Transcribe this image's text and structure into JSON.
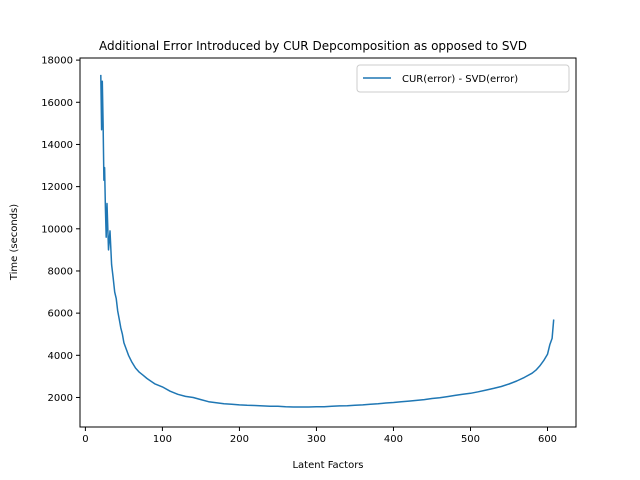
{
  "chart_data": {
    "type": "line",
    "title": "Additional Error Introduced by CUR Depcomposition as opposed to SVD",
    "xlabel": "Latent Factors",
    "ylabel": "Time (seconds)",
    "xlim": [
      -7,
      637
    ],
    "ylim": [
      600,
      18100
    ],
    "xticks": [
      0,
      100,
      200,
      300,
      400,
      500,
      600
    ],
    "yticks": [
      2000,
      4000,
      6000,
      8000,
      10000,
      12000,
      14000,
      16000,
      18000
    ],
    "legend_position": "upper right",
    "grid": false,
    "series": [
      {
        "name": "CUR(error) - SVD(error)",
        "color": "#1f77b4",
        "x": [
          20,
          21,
          22,
          23,
          24,
          25,
          26,
          27,
          28,
          30,
          32,
          34,
          36,
          38,
          40,
          42,
          44,
          46,
          48,
          50,
          53,
          56,
          60,
          65,
          70,
          75,
          80,
          90,
          100,
          110,
          120,
          130,
          140,
          150,
          160,
          170,
          180,
          190,
          200,
          210,
          220,
          230,
          240,
          250,
          260,
          270,
          280,
          290,
          300,
          310,
          320,
          330,
          340,
          350,
          360,
          370,
          380,
          390,
          400,
          410,
          420,
          430,
          440,
          450,
          460,
          470,
          480,
          490,
          500,
          510,
          520,
          530,
          540,
          550,
          560,
          570,
          580,
          585,
          590,
          595,
          600,
          603,
          606,
          608
        ],
        "values": [
          17300,
          14700,
          17000,
          15000,
          12300,
          12900,
          11000,
          9600,
          11200,
          9000,
          9900,
          8300,
          7700,
          7000,
          6700,
          6100,
          5700,
          5300,
          5000,
          4600,
          4300,
          4000,
          3700,
          3400,
          3200,
          3050,
          2900,
          2650,
          2500,
          2300,
          2150,
          2050,
          2000,
          1900,
          1800,
          1750,
          1700,
          1680,
          1650,
          1630,
          1620,
          1600,
          1580,
          1580,
          1560,
          1550,
          1550,
          1550,
          1560,
          1560,
          1580,
          1600,
          1610,
          1630,
          1650,
          1680,
          1700,
          1740,
          1760,
          1800,
          1830,
          1860,
          1900,
          1950,
          1990,
          2040,
          2100,
          2150,
          2200,
          2270,
          2350,
          2430,
          2520,
          2640,
          2780,
          2950,
          3150,
          3300,
          3500,
          3750,
          4050,
          4500,
          4800,
          5700
        ]
      }
    ]
  }
}
